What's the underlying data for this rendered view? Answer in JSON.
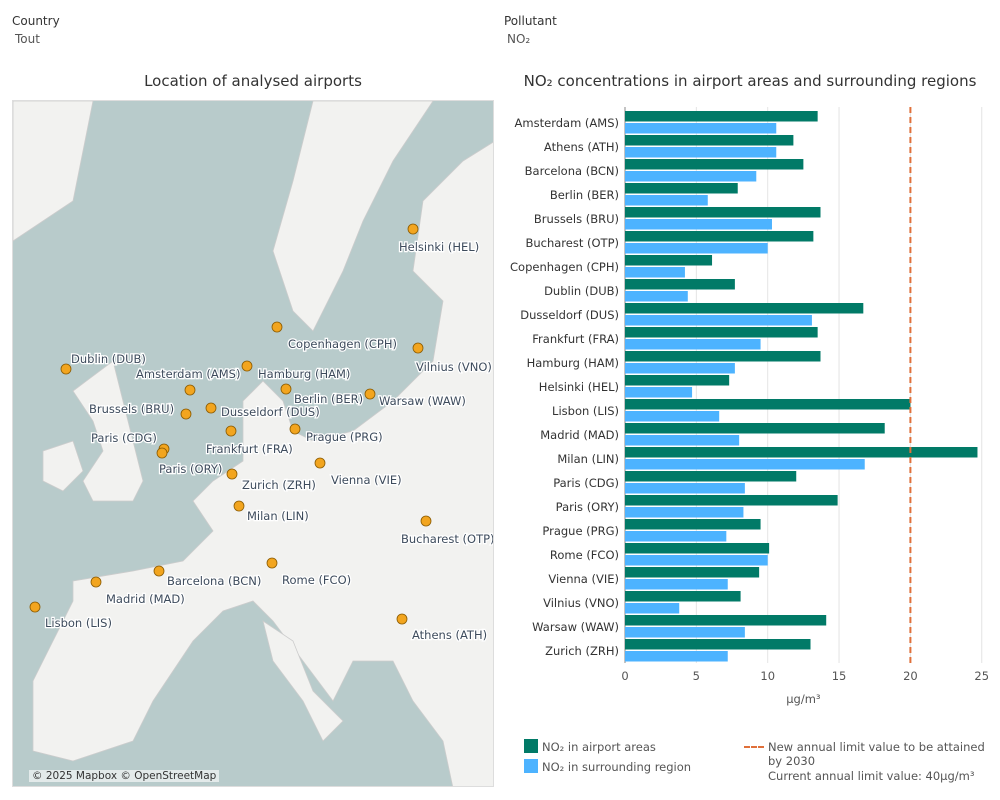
{
  "filters": {
    "country_label": "Country",
    "country_value": "Tout",
    "pollutant_label": "Pollutant",
    "pollutant_value": "NO₂"
  },
  "map": {
    "title": "Location of analysed airports",
    "attribution": "© 2025 Mapbox © OpenStreetMap",
    "airports": [
      {
        "label": "Helsinki (HEL)"
      },
      {
        "label": "Copenhagen (CPH)"
      },
      {
        "label": "Dublin (DUB)"
      },
      {
        "label": "Amsterdam (AMS)"
      },
      {
        "label": "Hamburg (HAM)"
      },
      {
        "label": "Vilnius (VNO)"
      },
      {
        "label": "Berlin (BER)"
      },
      {
        "label": "Warsaw (WAW)"
      },
      {
        "label": "Brussels (BRU)"
      },
      {
        "label": "Dusseldorf (DUS)"
      },
      {
        "label": "Paris (CDG)"
      },
      {
        "label": "Paris (ORY)"
      },
      {
        "label": "Frankfurt (FRA)"
      },
      {
        "label": "Prague (PRG)"
      },
      {
        "label": "Vienna (VIE)"
      },
      {
        "label": "Zurich (ZRH)"
      },
      {
        "label": "Milan (LIN)"
      },
      {
        "label": "Bucharest (OTP)"
      },
      {
        "label": "Rome (FCO)"
      },
      {
        "label": "Barcelona (BCN)"
      },
      {
        "label": "Madrid (MAD)"
      },
      {
        "label": "Lisbon (LIS)"
      },
      {
        "label": "Athens (ATH)"
      }
    ],
    "colors": {
      "sea": "#b8cbcb",
      "land": "#f2f2f0",
      "marker": "#f2a51f"
    }
  },
  "chart_data": {
    "type": "bar",
    "orientation": "horizontal",
    "title": "NO₂ concentrations in airport areas and surrounding regions",
    "xlabel": "µg/m³",
    "xlim": [
      0,
      25
    ],
    "xticks": [
      "0",
      "5",
      "10",
      "15",
      "20",
      "25"
    ],
    "grid": true,
    "categories": [
      "Amsterdam (AMS)",
      "Athens (ATH)",
      "Barcelona (BCN)",
      "Berlin (BER)",
      "Brussels (BRU)",
      "Bucharest (OTP)",
      "Copenhagen (CPH)",
      "Dublin (DUB)",
      "Dusseldorf (DUS)",
      "Frankfurt (FRA)",
      "Hamburg (HAM)",
      "Helsinki (HEL)",
      "Lisbon (LIS)",
      "Madrid (MAD)",
      "Milan (LIN)",
      "Paris (CDG)",
      "Paris (ORY)",
      "Prague (PRG)",
      "Rome (FCO)",
      "Vienna (VIE)",
      "Vilnius (VNO)",
      "Warsaw (WAW)",
      "Zurich (ZRH)"
    ],
    "series": [
      {
        "name": "NO₂ in airport areas",
        "color": "#017a67",
        "values": [
          13.5,
          11.8,
          12.5,
          7.9,
          13.7,
          13.2,
          6.1,
          7.7,
          16.7,
          13.5,
          13.7,
          7.3,
          20.0,
          18.2,
          24.7,
          12.0,
          14.9,
          9.5,
          10.1,
          9.4,
          8.1,
          14.1,
          13.0
        ]
      },
      {
        "name": "NO₂ in surrounding region",
        "color": "#4db3ff",
        "values": [
          10.6,
          10.6,
          9.2,
          5.8,
          10.3,
          10.0,
          4.2,
          4.4,
          13.1,
          9.5,
          7.7,
          4.7,
          6.6,
          8.0,
          16.8,
          8.4,
          8.3,
          7.1,
          10.0,
          7.2,
          3.8,
          8.4,
          7.2
        ]
      }
    ],
    "reference_line": {
      "value": 20,
      "color": "#e0703a",
      "label": "New annual limit value to be attained by 2030"
    },
    "note": "Current annual limit value: 40µg/m³",
    "legend_position": "bottom"
  }
}
